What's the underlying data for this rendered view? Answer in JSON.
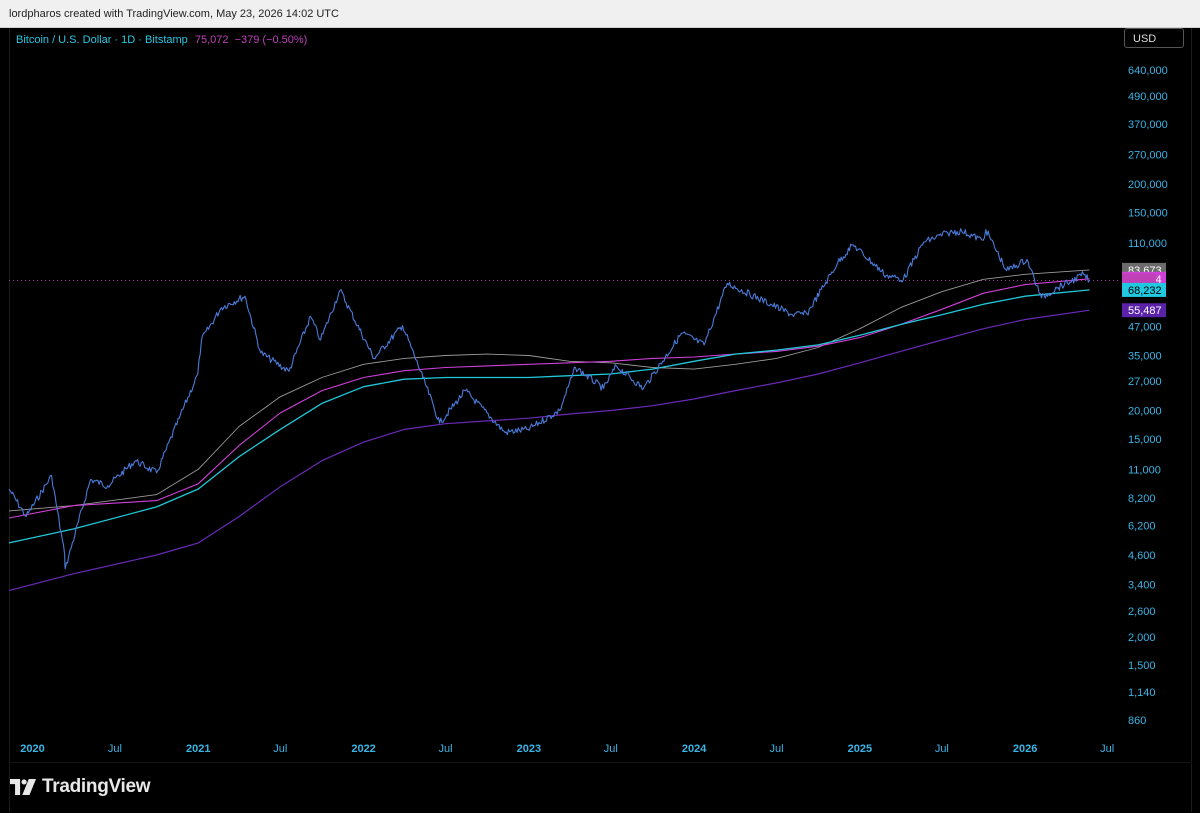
{
  "header": {
    "credit": "lordpharos created with TradingView.com, May 23, 2026 14:02 UTC"
  },
  "legend": {
    "symbol": "Bitcoin / U.S. Dollar · 1D · Bitstamp",
    "last": "75,072",
    "change": "−379 (−0.50%)"
  },
  "currency": "USD",
  "brand": "TradingView",
  "colors": {
    "price": "#4a7bd9",
    "ma_gray": "#9a9a9a",
    "ma_magenta": "#d040d8",
    "ma_cyan": "#20c8d8",
    "ma_purple": "#6a2ab8",
    "axis_text": "#3ab4e6",
    "last_line": "#c040b8"
  },
  "chart_data": {
    "type": "line",
    "yscale": "log",
    "xlim": [
      "2019-11-10",
      "2026-07-25"
    ],
    "ylim": [
      700,
      800000
    ],
    "y_ticks": [
      "640,000",
      "490,000",
      "370,000",
      "270,000",
      "200,000",
      "150,000",
      "110,000",
      "47,000",
      "35,000",
      "27,000",
      "20,000",
      "15,000",
      "11,000",
      "8,200",
      "6,200",
      "4,600",
      "3,400",
      "2,600",
      "2,000",
      "1,500",
      "1,140",
      "860"
    ],
    "y_tick_values": [
      640000,
      490000,
      370000,
      270000,
      200000,
      150000,
      110000,
      47000,
      35000,
      27000,
      20000,
      15000,
      11000,
      8200,
      6200,
      4600,
      3400,
      2600,
      2000,
      1500,
      1140,
      860
    ],
    "x_ticks": [
      {
        "label": "2020",
        "date": "2020-01-01",
        "major": true
      },
      {
        "label": "Jul",
        "date": "2020-07-01",
        "major": false
      },
      {
        "label": "2021",
        "date": "2021-01-01",
        "major": true
      },
      {
        "label": "Jul",
        "date": "2021-07-01",
        "major": false
      },
      {
        "label": "2022",
        "date": "2022-01-01",
        "major": true
      },
      {
        "label": "Jul",
        "date": "2022-07-01",
        "major": false
      },
      {
        "label": "2023",
        "date": "2023-01-01",
        "major": true
      },
      {
        "label": "Jul",
        "date": "2023-07-01",
        "major": false
      },
      {
        "label": "2024",
        "date": "2024-01-01",
        "major": true
      },
      {
        "label": "Jul",
        "date": "2024-07-01",
        "major": false
      },
      {
        "label": "2025",
        "date": "2025-01-01",
        "major": true
      },
      {
        "label": "Jul",
        "date": "2025-07-01",
        "major": false
      },
      {
        "label": "2026",
        "date": "2026-01-01",
        "major": true
      },
      {
        "label": "Jul",
        "date": "2026-07-01",
        "major": false
      }
    ],
    "price_labels": [
      {
        "text": "83,673",
        "value": 83673,
        "color": "#6b6b6b",
        "text_color": "#ffffff"
      },
      {
        "text": "76,394",
        "value": 76394,
        "color": "#d040d8",
        "text_color": "#ffffff"
      },
      {
        "text": "",
        "value": 75072,
        "color": "#c040b8",
        "text_color": "#ffffff"
      },
      {
        "text": "68,232",
        "value": 68232,
        "color": "#20c8e0",
        "text_color": "#000000"
      },
      {
        "text": "55,487",
        "value": 55487,
        "color": "#5a22a8",
        "text_color": "#ffffff"
      }
    ],
    "series": [
      {
        "key": "price",
        "points": [
          [
            "2019-11-10",
            9000
          ],
          [
            "2019-12-18",
            6800
          ],
          [
            "2020-02-12",
            10300
          ],
          [
            "2020-03-12",
            4600
          ],
          [
            "2020-03-13",
            4000
          ],
          [
            "2020-05-08",
            9900
          ],
          [
            "2020-06-15",
            9300
          ],
          [
            "2020-08-15",
            12000
          ],
          [
            "2020-10-01",
            10600
          ],
          [
            "2020-11-20",
            18500
          ],
          [
            "2020-12-31",
            29000
          ],
          [
            "2021-01-08",
            41000
          ],
          [
            "2021-02-21",
            57000
          ],
          [
            "2021-04-14",
            64000
          ],
          [
            "2021-05-19",
            36000
          ],
          [
            "2021-07-20",
            29800
          ],
          [
            "2021-09-06",
            52000
          ],
          [
            "2021-09-28",
            41000
          ],
          [
            "2021-11-10",
            68000
          ],
          [
            "2022-01-24",
            34000
          ],
          [
            "2022-03-28",
            47500
          ],
          [
            "2022-05-12",
            28000
          ],
          [
            "2022-06-18",
            17600
          ],
          [
            "2022-08-14",
            24500
          ],
          [
            "2022-11-09",
            16000
          ],
          [
            "2022-12-30",
            16500
          ],
          [
            "2023-03-10",
            20000
          ],
          [
            "2023-04-14",
            31000
          ],
          [
            "2023-06-15",
            25000
          ],
          [
            "2023-07-13",
            31500
          ],
          [
            "2023-09-11",
            25000
          ],
          [
            "2023-12-05",
            44000
          ],
          [
            "2024-01-23",
            39000
          ],
          [
            "2024-03-14",
            73000
          ],
          [
            "2024-08-05",
            53000
          ],
          [
            "2024-09-06",
            53500
          ],
          [
            "2024-11-13",
            90000
          ],
          [
            "2024-12-17",
            108000
          ],
          [
            "2025-02-28",
            79000
          ],
          [
            "2025-04-07",
            76000
          ],
          [
            "2025-05-22",
            111000
          ],
          [
            "2025-07-14",
            122000
          ],
          [
            "2025-08-14",
            124000
          ],
          [
            "2025-09-30",
            113000
          ],
          [
            "2025-10-06",
            126000
          ],
          [
            "2025-11-21",
            83000
          ],
          [
            "2026-01-05",
            93000
          ],
          [
            "2026-02-06",
            63000
          ],
          [
            "2026-03-15",
            70000
          ],
          [
            "2026-04-10",
            74000
          ],
          [
            "2026-05-10",
            80000
          ],
          [
            "2026-05-23",
            75072
          ]
        ]
      },
      {
        "key": "ma_gray",
        "points": [
          [
            "2019-11-10",
            7200
          ],
          [
            "2020-04-01",
            7600
          ],
          [
            "2020-10-01",
            8500
          ],
          [
            "2021-01-01",
            11000
          ],
          [
            "2021-04-01",
            17000
          ],
          [
            "2021-07-01",
            23000
          ],
          [
            "2021-10-01",
            28000
          ],
          [
            "2022-01-01",
            32000
          ],
          [
            "2022-04-01",
            34000
          ],
          [
            "2022-07-01",
            35000
          ],
          [
            "2022-10-01",
            35500
          ],
          [
            "2023-01-01",
            35000
          ],
          [
            "2023-04-01",
            33000
          ],
          [
            "2023-07-01",
            32500
          ],
          [
            "2023-10-01",
            31000
          ],
          [
            "2024-01-01",
            30500
          ],
          [
            "2024-04-01",
            32000
          ],
          [
            "2024-07-01",
            34000
          ],
          [
            "2024-10-01",
            38000
          ],
          [
            "2025-01-01",
            46000
          ],
          [
            "2025-04-01",
            57000
          ],
          [
            "2025-07-01",
            67000
          ],
          [
            "2025-10-01",
            76000
          ],
          [
            "2026-01-01",
            80000
          ],
          [
            "2026-05-23",
            83673
          ]
        ]
      },
      {
        "key": "ma_magenta",
        "points": [
          [
            "2019-11-10",
            6700
          ],
          [
            "2020-04-01",
            7600
          ],
          [
            "2020-10-01",
            8000
          ],
          [
            "2021-01-01",
            9500
          ],
          [
            "2021-04-01",
            14000
          ],
          [
            "2021-07-01",
            19500
          ],
          [
            "2021-10-01",
            24500
          ],
          [
            "2022-01-01",
            28000
          ],
          [
            "2022-04-01",
            30000
          ],
          [
            "2022-07-01",
            31000
          ],
          [
            "2022-10-01",
            31500
          ],
          [
            "2023-01-01",
            32000
          ],
          [
            "2023-04-01",
            32500
          ],
          [
            "2023-07-01",
            33000
          ],
          [
            "2023-10-01",
            34000
          ],
          [
            "2024-01-01",
            34500
          ],
          [
            "2024-04-01",
            35500
          ],
          [
            "2024-07-01",
            36500
          ],
          [
            "2024-10-01",
            38500
          ],
          [
            "2025-01-01",
            42000
          ],
          [
            "2025-04-01",
            48000
          ],
          [
            "2025-07-01",
            56000
          ],
          [
            "2025-10-01",
            66000
          ],
          [
            "2026-01-01",
            72000
          ],
          [
            "2026-05-23",
            76394
          ]
        ]
      },
      {
        "key": "ma_cyan",
        "points": [
          [
            "2019-11-10",
            5200
          ],
          [
            "2020-04-01",
            6000
          ],
          [
            "2020-10-01",
            7500
          ],
          [
            "2021-01-01",
            9000
          ],
          [
            "2021-04-01",
            12500
          ],
          [
            "2021-07-01",
            16500
          ],
          [
            "2021-10-01",
            21500
          ],
          [
            "2022-01-01",
            25500
          ],
          [
            "2022-04-01",
            27500
          ],
          [
            "2022-07-01",
            28000
          ],
          [
            "2022-10-01",
            28000
          ],
          [
            "2023-01-01",
            28000
          ],
          [
            "2023-04-01",
            28500
          ],
          [
            "2023-07-01",
            29000
          ],
          [
            "2023-10-01",
            30500
          ],
          [
            "2024-01-01",
            33000
          ],
          [
            "2024-04-01",
            35500
          ],
          [
            "2024-07-01",
            37000
          ],
          [
            "2024-10-01",
            39000
          ],
          [
            "2025-01-01",
            43000
          ],
          [
            "2025-04-01",
            48000
          ],
          [
            "2025-07-01",
            53000
          ],
          [
            "2025-10-01",
            59000
          ],
          [
            "2026-01-01",
            64000
          ],
          [
            "2026-05-23",
            68232
          ]
        ]
      },
      {
        "key": "ma_purple",
        "points": [
          [
            "2019-11-10",
            3200
          ],
          [
            "2020-04-01",
            3800
          ],
          [
            "2020-10-01",
            4600
          ],
          [
            "2021-01-01",
            5200
          ],
          [
            "2021-04-01",
            6800
          ],
          [
            "2021-07-01",
            9200
          ],
          [
            "2021-10-01",
            12000
          ],
          [
            "2022-01-01",
            14500
          ],
          [
            "2022-04-01",
            16500
          ],
          [
            "2022-07-01",
            17500
          ],
          [
            "2022-10-01",
            18000
          ],
          [
            "2023-01-01",
            18500
          ],
          [
            "2023-04-01",
            19300
          ],
          [
            "2023-07-01",
            20000
          ],
          [
            "2023-10-01",
            21000
          ],
          [
            "2024-01-01",
            22500
          ],
          [
            "2024-04-01",
            24500
          ],
          [
            "2024-07-01",
            26500
          ],
          [
            "2024-10-01",
            29000
          ],
          [
            "2025-01-01",
            32500
          ],
          [
            "2025-04-01",
            36500
          ],
          [
            "2025-07-01",
            41000
          ],
          [
            "2025-10-01",
            46000
          ],
          [
            "2026-01-01",
            50500
          ],
          [
            "2026-05-23",
            55487
          ]
        ]
      }
    ]
  }
}
